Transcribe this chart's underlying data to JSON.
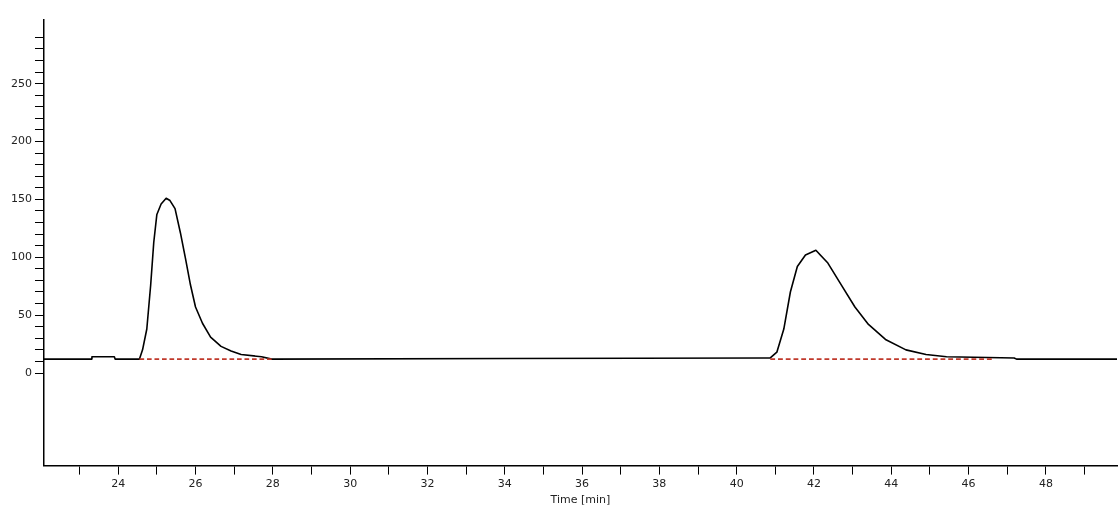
{
  "chart_data": {
    "type": "line",
    "xlabel": "Time [min]",
    "xlim": [
      22.08,
      49.84
    ],
    "ylim": [
      -80,
      305
    ],
    "xticks": [
      {
        "value": 23,
        "label": null
      },
      24,
      {
        "value": 25,
        "label": null
      },
      26,
      {
        "value": 27,
        "label": null
      },
      28,
      {
        "value": 29,
        "label": null
      },
      30,
      {
        "value": 31,
        "label": null
      },
      32,
      {
        "value": 33,
        "label": null
      },
      34,
      {
        "value": 35,
        "label": null
      },
      36,
      {
        "value": 37,
        "label": null
      },
      38,
      {
        "value": 39,
        "label": null
      },
      40,
      {
        "value": 41,
        "label": null
      },
      42,
      {
        "value": 43,
        "label": null
      },
      44,
      {
        "value": 45,
        "label": null
      },
      46,
      {
        "value": 47,
        "label": null
      },
      48,
      {
        "value": 49,
        "label": null
      }
    ],
    "yticks": [
      0,
      {
        "value": 10,
        "label": null
      },
      {
        "value": 20,
        "label": null
      },
      {
        "value": 30,
        "label": null
      },
      {
        "value": 40,
        "label": null
      },
      50,
      {
        "value": 60,
        "label": null
      },
      {
        "value": 70,
        "label": null
      },
      {
        "value": 80,
        "label": null
      },
      {
        "value": 90,
        "label": null
      },
      100,
      {
        "value": 110,
        "label": null
      },
      {
        "value": 120,
        "label": null
      },
      {
        "value": 130,
        "label": null
      },
      {
        "value": 140,
        "label": null
      },
      150,
      {
        "value": 160,
        "label": null
      },
      {
        "value": 170,
        "label": null
      },
      {
        "value": 180,
        "label": null
      },
      {
        "value": 190,
        "label": null
      },
      200,
      {
        "value": 210,
        "label": null
      },
      {
        "value": 220,
        "label": null
      },
      {
        "value": 230,
        "label": null
      },
      {
        "value": 240,
        "label": null
      },
      250,
      {
        "value": 260,
        "label": null
      },
      {
        "value": 270,
        "label": null
      },
      {
        "value": 280,
        "label": null
      },
      {
        "value": 290,
        "label": null
      }
    ],
    "grid": false,
    "legend": false,
    "marker": "none",
    "series": [
      {
        "color": "#000000",
        "line_style": "solid",
        "x": [
          22.08,
          23.3,
          23.32,
          23.9,
          23.92,
          24.55,
          24.63,
          24.74,
          24.84,
          24.92,
          25.0,
          25.11,
          25.24,
          25.34,
          25.47,
          25.61,
          25.74,
          25.87,
          26.0,
          26.18,
          26.39,
          26.66,
          26.92,
          27.18,
          27.71,
          27.97,
          40.87,
          41.04,
          41.22,
          41.39,
          41.57,
          41.78,
          42.05,
          42.36,
          42.71,
          43.06,
          43.41,
          43.85,
          44.38,
          44.9,
          45.43,
          47.18,
          47.24,
          49.84
        ],
        "values": [
          12,
          12,
          14,
          14,
          12,
          12,
          20,
          38,
          76,
          113,
          137,
          146,
          151,
          149,
          142,
          121,
          99,
          76,
          57,
          43,
          31,
          23,
          19,
          16,
          14,
          12,
          13,
          18,
          38,
          70,
          92,
          102,
          106,
          95,
          76,
          57,
          42,
          29,
          20,
          16,
          14,
          13,
          12,
          12
        ]
      },
      {
        "color": "#c0392b",
        "line_style": "dashed",
        "x": [
          24.55,
          27.97
        ],
        "values": [
          12,
          12
        ]
      },
      {
        "color": "#c0392b",
        "line_style": "dashed",
        "x": [
          40.87,
          46.6
        ],
        "values": [
          12,
          12
        ]
      }
    ]
  }
}
